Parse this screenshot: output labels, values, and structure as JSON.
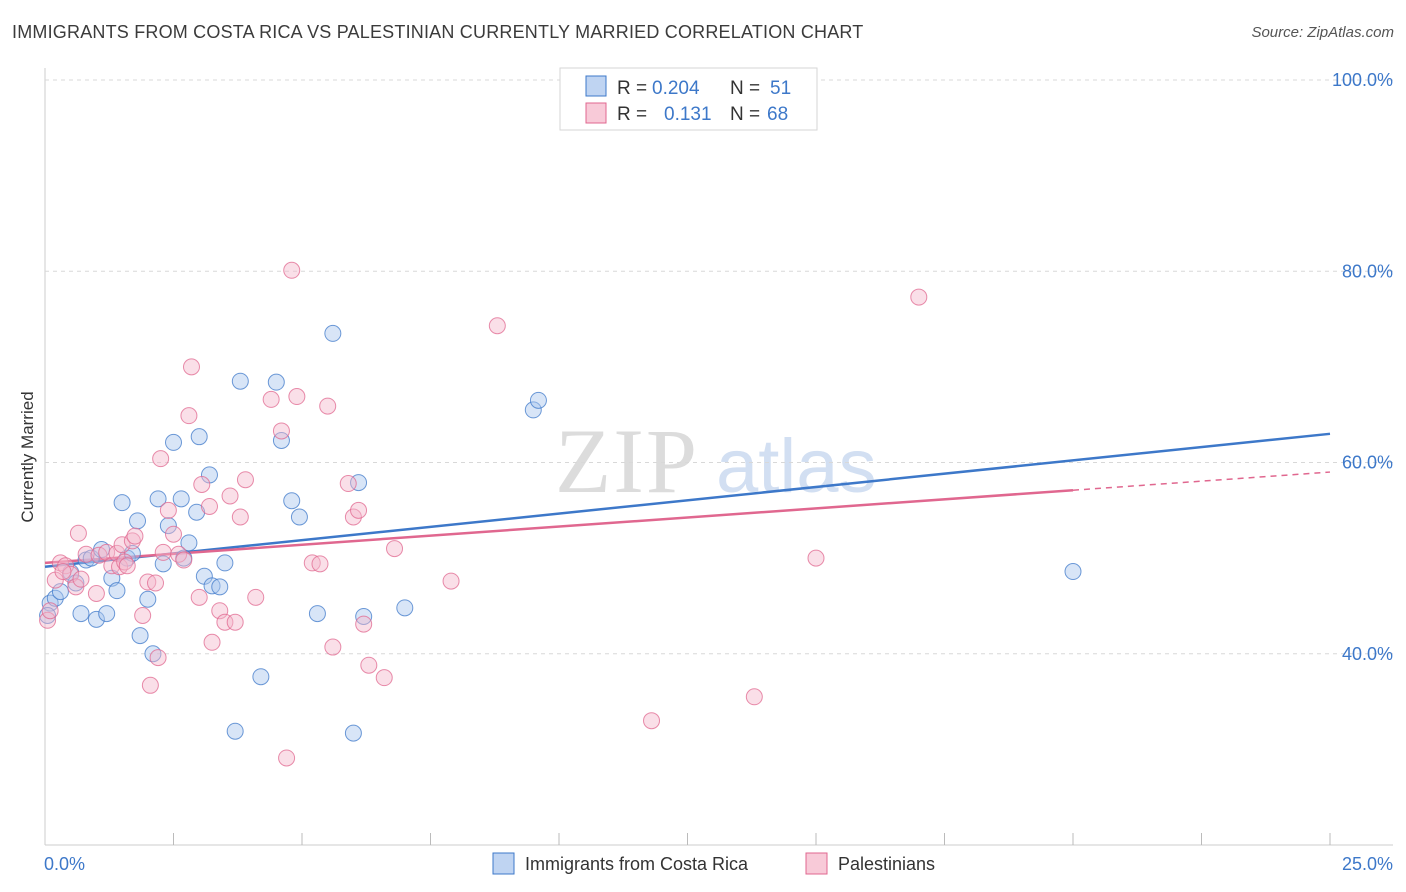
{
  "title": "IMMIGRANTS FROM COSTA RICA VS PALESTINIAN CURRENTLY MARRIED CORRELATION CHART",
  "source": "Source: ZipAtlas.com",
  "watermark": {
    "zip": "ZIP",
    "atlas": "atlas"
  },
  "colors": {
    "blue": "#3d78c9",
    "blue_fill": "#a9c6ee",
    "pink": "#e0678f",
    "pink_fill": "#f5b8cb",
    "grid": "#d8d8d8"
  },
  "legend": [
    {
      "r_label": "R =",
      "r_value": "0.204",
      "n_label": "N =",
      "n_value": "51"
    },
    {
      "r_label": "R =",
      "r_value": "0.131",
      "n_label": "N =",
      "n_value": "68"
    }
  ],
  "chart_data": {
    "type": "scatter",
    "title": "IMMIGRANTS FROM COSTA RICA VS PALESTINIAN CURRENTLY MARRIED CORRELATION CHART",
    "xlabel": "",
    "ylabel": "Currently Married",
    "xlim": [
      0,
      25
    ],
    "ylim": [
      20,
      100
    ],
    "x_tick_labels": [
      "0.0%",
      "25.0%"
    ],
    "y_ticks": [
      {
        "value": 40,
        "label": "40.0%"
      },
      {
        "value": 60,
        "label": "60.0%"
      },
      {
        "value": 80,
        "label": "80.0%"
      },
      {
        "value": 100,
        "label": "100.0%"
      }
    ],
    "series": [
      {
        "name": "Immigrants from Costa Rica",
        "color": "#3d78c9",
        "r": 0.204,
        "n": 51,
        "trend": {
          "x0": 0,
          "y0": 49.1,
          "x1": 25,
          "y1": 63.0
        },
        "points": [
          [
            0.1,
            45.3
          ],
          [
            0.2,
            45.8
          ],
          [
            0.3,
            46.5
          ],
          [
            0.5,
            48.5
          ],
          [
            0.6,
            47.4
          ],
          [
            0.7,
            44.2
          ],
          [
            0.8,
            49.8
          ],
          [
            0.9,
            50.0
          ],
          [
            1.0,
            43.6
          ],
          [
            1.1,
            50.9
          ],
          [
            1.2,
            44.2
          ],
          [
            1.3,
            47.9
          ],
          [
            1.4,
            46.6
          ],
          [
            1.5,
            55.8
          ],
          [
            1.6,
            50.0
          ],
          [
            1.7,
            50.5
          ],
          [
            1.8,
            53.9
          ],
          [
            1.85,
            41.9
          ],
          [
            2.0,
            45.7
          ],
          [
            2.1,
            40.0
          ],
          [
            2.2,
            56.2
          ],
          [
            2.3,
            49.4
          ],
          [
            2.4,
            53.4
          ],
          [
            2.5,
            62.1
          ],
          [
            2.65,
            56.2
          ],
          [
            2.7,
            50.0
          ],
          [
            2.8,
            51.6
          ],
          [
            2.95,
            54.8
          ],
          [
            3.0,
            62.7
          ],
          [
            3.1,
            48.1
          ],
          [
            3.2,
            58.7
          ],
          [
            3.25,
            47.1
          ],
          [
            3.4,
            47.0
          ],
          [
            3.5,
            49.5
          ],
          [
            3.7,
            31.9
          ],
          [
            3.8,
            68.5
          ],
          [
            4.2,
            37.6
          ],
          [
            4.5,
            68.4
          ],
          [
            4.6,
            62.3
          ],
          [
            4.8,
            56.0
          ],
          [
            4.95,
            54.3
          ],
          [
            5.3,
            44.2
          ],
          [
            5.6,
            73.5
          ],
          [
            6.0,
            31.7
          ],
          [
            6.1,
            57.9
          ],
          [
            6.2,
            43.9
          ],
          [
            7.0,
            44.8
          ],
          [
            9.5,
            65.5
          ],
          [
            9.6,
            66.5
          ],
          [
            20.0,
            48.6
          ],
          [
            0.05,
            44.0
          ]
        ]
      },
      {
        "name": "Palestinians",
        "color": "#e0678f",
        "r": 0.131,
        "n": 68,
        "trend_solid": {
          "x0": 0,
          "y0": 49.5,
          "x1": 20,
          "y1": 57.1
        },
        "trend_dashed": {
          "x0": 20,
          "y0": 57.1,
          "x1": 25,
          "y1": 59.0
        },
        "points": [
          [
            0.05,
            43.5
          ],
          [
            0.2,
            47.7
          ],
          [
            0.3,
            49.5
          ],
          [
            0.4,
            49.2
          ],
          [
            0.5,
            48.3
          ],
          [
            0.6,
            47.0
          ],
          [
            0.65,
            52.6
          ],
          [
            0.7,
            47.8
          ],
          [
            0.8,
            50.4
          ],
          [
            1.0,
            46.3
          ],
          [
            1.05,
            50.3
          ],
          [
            1.2,
            50.6
          ],
          [
            1.3,
            49.2
          ],
          [
            1.4,
            50.5
          ],
          [
            1.45,
            49.1
          ],
          [
            1.5,
            51.4
          ],
          [
            1.55,
            49.6
          ],
          [
            1.6,
            49.2
          ],
          [
            1.7,
            51.8
          ],
          [
            1.75,
            52.3
          ],
          [
            1.9,
            44.0
          ],
          [
            2.0,
            47.5
          ],
          [
            2.05,
            36.7
          ],
          [
            2.15,
            47.4
          ],
          [
            2.2,
            39.6
          ],
          [
            2.25,
            60.4
          ],
          [
            2.3,
            50.6
          ],
          [
            2.4,
            55.0
          ],
          [
            2.5,
            52.5
          ],
          [
            2.6,
            50.4
          ],
          [
            2.7,
            49.8
          ],
          [
            2.8,
            64.9
          ],
          [
            2.85,
            70.0
          ],
          [
            3.0,
            45.9
          ],
          [
            3.05,
            57.7
          ],
          [
            3.2,
            55.4
          ],
          [
            3.25,
            41.2
          ],
          [
            3.4,
            44.5
          ],
          [
            3.5,
            43.3
          ],
          [
            3.6,
            56.5
          ],
          [
            3.7,
            43.3
          ],
          [
            3.8,
            54.3
          ],
          [
            3.9,
            58.2
          ],
          [
            4.1,
            45.9
          ],
          [
            4.4,
            66.6
          ],
          [
            4.6,
            63.3
          ],
          [
            4.7,
            29.1
          ],
          [
            4.8,
            80.1
          ],
          [
            4.9,
            66.9
          ],
          [
            5.2,
            49.5
          ],
          [
            5.35,
            49.4
          ],
          [
            5.5,
            65.9
          ],
          [
            5.6,
            40.7
          ],
          [
            5.9,
            57.8
          ],
          [
            6.0,
            54.3
          ],
          [
            6.1,
            55.0
          ],
          [
            6.2,
            43.1
          ],
          [
            6.3,
            38.8
          ],
          [
            6.6,
            37.5
          ],
          [
            6.8,
            51.0
          ],
          [
            7.9,
            47.6
          ],
          [
            8.8,
            74.3
          ],
          [
            11.8,
            33.0
          ],
          [
            13.8,
            35.5
          ],
          [
            15.0,
            50.0
          ],
          [
            17.0,
            77.3
          ],
          [
            0.1,
            44.5
          ],
          [
            0.35,
            48.6
          ]
        ]
      }
    ]
  }
}
